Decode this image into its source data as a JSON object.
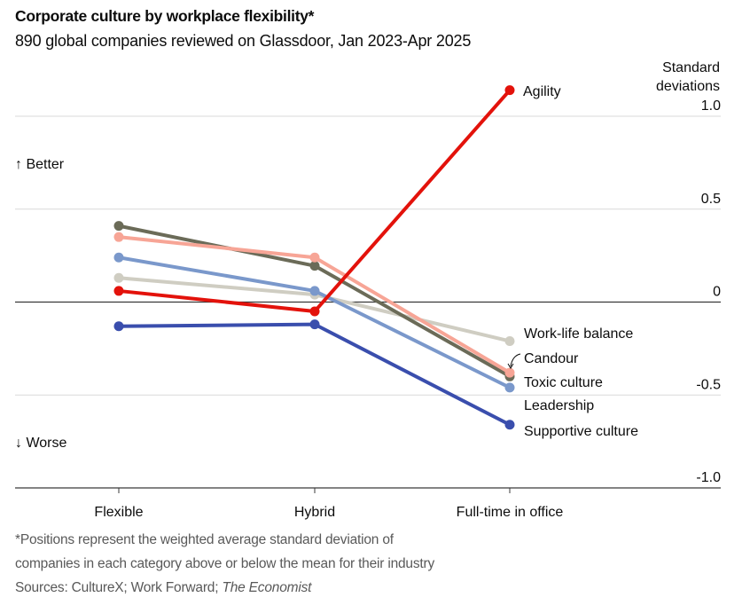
{
  "chart_data": {
    "type": "line",
    "title": "Corporate culture by workplace flexibility*",
    "subtitle": "890 global companies reviewed on Glassdoor, Jan 2023-Apr 2025",
    "ylabel": "Standard deviations",
    "ylabel_lines": [
      "Standard",
      "deviations"
    ],
    "ylim": [
      -1.0,
      1.0
    ],
    "yticks": [
      1.0,
      0.5,
      0,
      -0.5,
      -1.0
    ],
    "ytick_labels": [
      "1.0",
      "0.5",
      "0",
      "-0.5",
      "-1.0"
    ],
    "grid": true,
    "categories": [
      "Flexible",
      "Hybrid",
      "Full-time in office"
    ],
    "annotations": {
      "better": "↑ Better",
      "worse": "↓ Worse"
    },
    "series": [
      {
        "name": "Work-life balance",
        "color": "#cfcdc2",
        "values": [
          0.13,
          0.04,
          -0.21
        ]
      },
      {
        "name": "Leadership",
        "color": "#7a98cb",
        "values": [
          0.24,
          0.06,
          -0.46
        ]
      },
      {
        "name": "Toxic culture",
        "color": "#6b6b58",
        "values": [
          0.41,
          0.195,
          -0.4
        ]
      },
      {
        "name": "Candour",
        "color": "#f7a596",
        "values": [
          0.35,
          0.24,
          -0.38
        ]
      },
      {
        "name": "Supportive culture",
        "color": "#3a4ead",
        "values": [
          -0.13,
          -0.12,
          -0.66
        ]
      },
      {
        "name": "Agility",
        "color": "#e3120b",
        "values": [
          0.06,
          -0.05,
          1.14
        ]
      }
    ],
    "end_labels": [
      {
        "series": "Agility",
        "text": "Agility"
      },
      {
        "series": "Work-life balance",
        "text": "Work-life balance"
      },
      {
        "series": "Candour",
        "text": "Candour"
      },
      {
        "series": "Toxic culture",
        "text": "Toxic culture"
      },
      {
        "series": "Leadership",
        "text": "Leadership"
      },
      {
        "series": "Supportive culture",
        "text": "Supportive culture"
      }
    ]
  },
  "footnotes": {
    "note_line1": "*Positions represent the weighted average standard deviation of",
    "note_line2": "companies in each category above or below the mean for their industry",
    "sources_prefix": "Sources: CultureX; Work Forward; ",
    "sources_italic": "The Economist"
  }
}
